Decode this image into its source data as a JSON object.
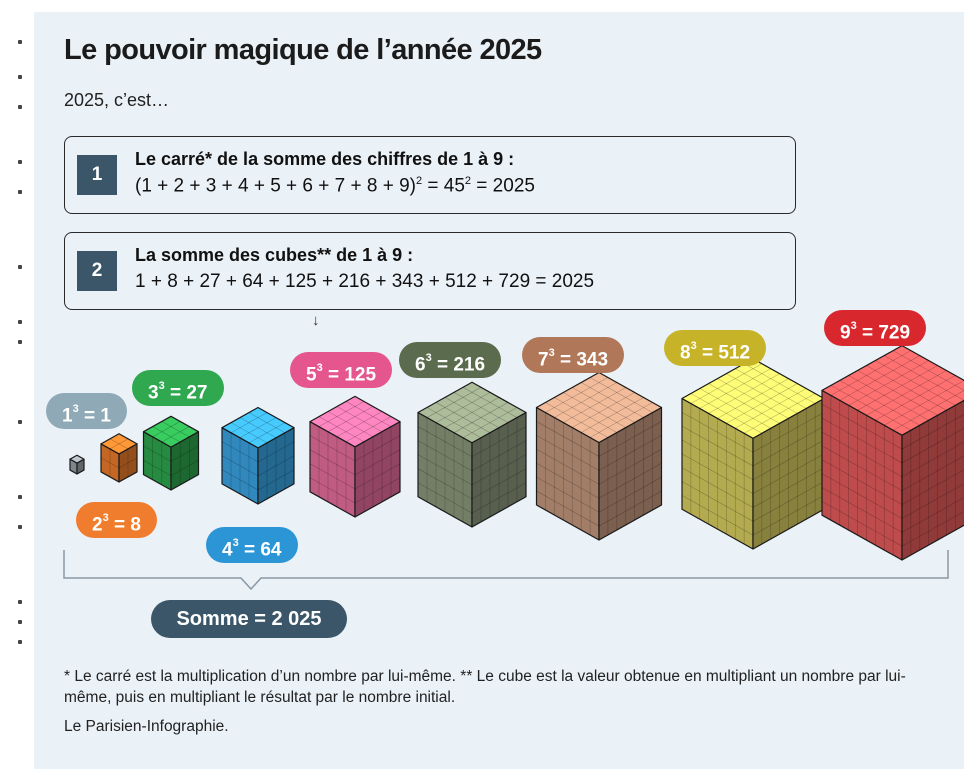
{
  "title": "Le pouvoir magique de l’année 2025",
  "subtitle": "2025, c’est…",
  "facts": [
    {
      "number": "1",
      "heading": "Le carré* de la somme des chiffres de 1 à 9 :",
      "formula_main": "(1 + 2 + 3 + 4 + 5 + 6 + 7 + 8 + 9)",
      "formula_exp": "2",
      "formula_mid": " = 45",
      "formula_exp2": "2",
      "formula_end": " = 2025"
    },
    {
      "number": "2",
      "heading": "La somme des cubes** de 1 à 9 :",
      "formula": "1 + 8 + 27 + 64 + 125 + 216 + 343 + 512 + 729 = 2025"
    }
  ],
  "arrow_glyph": "↓",
  "cubes": [
    {
      "base": "1",
      "exp": "3",
      "value": "= 1",
      "color": "#8fa9b6",
      "fill": "#9aa3a9"
    },
    {
      "base": "2",
      "exp": "3",
      "value": "= 8",
      "color": "#ef7d2d",
      "fill": "#ef7d2d"
    },
    {
      "base": "3",
      "exp": "3",
      "value": "= 27",
      "color": "#2fa84f",
      "fill": "#2fa84f"
    },
    {
      "base": "4",
      "exp": "3",
      "value": "= 64",
      "color": "#2b95d6",
      "fill": "#3aa6e6"
    },
    {
      "base": "5",
      "exp": "3",
      "value": "= 125",
      "color": "#e4568d",
      "fill": "#ea6f9e"
    },
    {
      "base": "6",
      "exp": "3",
      "value": "= 216",
      "color": "#5b6b4e",
      "fill": "#8e9a7e"
    },
    {
      "base": "7",
      "exp": "3",
      "value": "= 343",
      "color": "#b07858",
      "fill": "#c69a7f"
    },
    {
      "base": "8",
      "exp": "3",
      "value": "= 512",
      "color": "#c7b327",
      "fill": "#dccf62"
    },
    {
      "base": "9",
      "exp": "3",
      "value": "= 729",
      "color": "#d9272e",
      "fill": "#e85d5d"
    }
  ],
  "sum_label": "Somme = 2 025",
  "footnote": "* Le carré est la multiplication d’un nombre par lui-même. ** Le cube est la valeur obtenue en multipliant un nombre par lui-même, puis en multipliant le résultat par le nombre initial.",
  "credit": "Le Parisien-Infographie."
}
